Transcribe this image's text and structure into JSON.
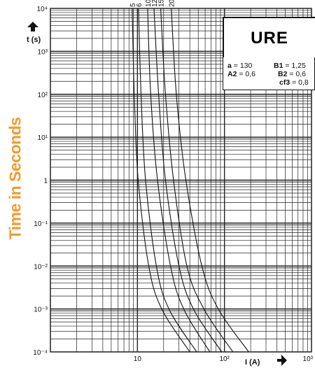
{
  "side_title": "Time in Seconds",
  "chart_data": {
    "type": "line",
    "title": "URE",
    "xlabel": "I (A)",
    "ylabel": "t (s)",
    "x_scale": "log",
    "y_scale": "log",
    "xlim": [
      1,
      1000
    ],
    "ylim": [
      0.0001,
      10000
    ],
    "x_ticks": [
      "10",
      "10²",
      "10³"
    ],
    "y_ticks": [
      "10⁴",
      "10³",
      "10²",
      "10¹",
      "1",
      "10⁻¹",
      "10⁻²",
      "10⁻³",
      "10⁻⁴"
    ],
    "parameters": [
      {
        "name": "a",
        "value": "130"
      },
      {
        "name": "B1",
        "value": "1,25"
      },
      {
        "name": "A2",
        "value": "0,6"
      },
      {
        "name": "B2",
        "value": "0,6"
      },
      {
        "name": "cf3",
        "value": "0,8"
      }
    ],
    "series": [
      {
        "name": "5",
        "points": [
          [
            8.7,
            10000
          ],
          [
            9.2,
            100
          ],
          [
            10.2,
            1
          ],
          [
            13.5,
            0.01
          ],
          [
            19,
            0.001
          ],
          [
            40,
            0.0001
          ]
        ]
      },
      {
        "name": "6",
        "points": [
          [
            10.3,
            10000
          ],
          [
            11,
            100
          ],
          [
            12.4,
            1
          ],
          [
            16.5,
            0.01
          ],
          [
            23,
            0.001
          ],
          [
            48,
            0.0001
          ]
        ]
      },
      {
        "name": "10",
        "points": [
          [
            13.1,
            10000
          ],
          [
            14.2,
            100
          ],
          [
            17,
            1
          ],
          [
            24,
            0.01
          ],
          [
            34,
            0.001
          ],
          [
            68,
            0.0001
          ]
        ]
      },
      {
        "name": "12",
        "points": [
          [
            15.5,
            10000
          ],
          [
            17.5,
            100
          ],
          [
            21,
            1
          ],
          [
            30,
            0.01
          ],
          [
            44,
            0.001
          ],
          [
            93,
            0.0001
          ]
        ]
      },
      {
        "name": "15",
        "points": [
          [
            18.5,
            10000
          ],
          [
            21,
            100
          ],
          [
            26,
            1
          ],
          [
            37,
            0.01
          ],
          [
            58,
            0.001
          ],
          [
            125,
            0.0001
          ]
        ]
      },
      {
        "name": "20",
        "points": [
          [
            24.5,
            10000
          ],
          [
            28,
            100
          ],
          [
            36,
            1
          ],
          [
            55,
            0.01
          ],
          [
            85,
            0.001
          ],
          [
            190,
            0.0001
          ]
        ]
      }
    ]
  }
}
